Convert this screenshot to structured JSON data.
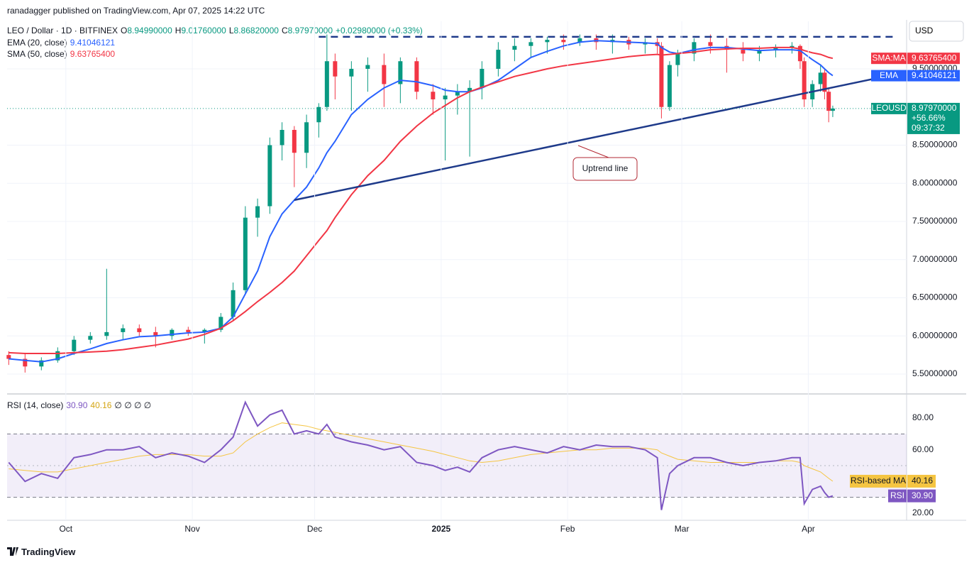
{
  "header": {
    "published": "ranadagger published on TradingView.com, Apr 07, 2025 14:22 UTC",
    "symbol_line": "LEO / Dollar · 1D · BITFINEX",
    "ohlc": [
      {
        "key": "O",
        "value": "8.94990000"
      },
      {
        "key": "H",
        "value": "9.01760000"
      },
      {
        "key": "L",
        "value": "8.86820000"
      },
      {
        "key": "C",
        "value": "8.97970000"
      }
    ],
    "change": "+0.02980000 (+0.33%)",
    "currency": "USD"
  },
  "footer": {
    "brand": "TradingView"
  },
  "chart_data": [
    {
      "type": "candlestick",
      "up_color": "#089981",
      "down_color": "#f23645",
      "x": [
        -14,
        -10,
        -6,
        -2,
        2,
        6,
        10,
        14,
        18,
        22,
        26,
        30,
        34,
        38,
        41,
        44,
        47,
        50,
        53,
        56,
        59,
        62,
        64,
        66,
        70,
        74,
        78,
        82,
        86,
        90,
        93,
        96,
        99,
        102,
        106,
        110,
        114,
        118,
        122,
        126,
        130,
        134,
        138,
        142,
        145,
        146,
        148,
        150,
        154,
        158,
        162,
        166,
        170,
        174,
        178,
        180,
        181,
        183,
        185,
        186,
        187,
        188
      ],
      "open": [
        5.75,
        5.7,
        5.6,
        5.68,
        5.8,
        5.95,
        6.0,
        6.05,
        6.1,
        6.05,
        6.0,
        6.08,
        6.05,
        6.08,
        6.25,
        6.6,
        7.55,
        7.7,
        8.5,
        8.7,
        8.4,
        8.8,
        9.0,
        9.6,
        9.4,
        9.5,
        9.55,
        9.3,
        9.6,
        9.2,
        9.1,
        9.15,
        9.2,
        9.25,
        9.5,
        9.75,
        9.8,
        9.85,
        9.88,
        9.85,
        9.9,
        9.85,
        9.88,
        9.82,
        9.85,
        9.8,
        9.0,
        9.55,
        9.7,
        9.85,
        9.8,
        9.75,
        9.7,
        9.75,
        9.78,
        9.8,
        9.6,
        9.1,
        9.3,
        9.45,
        9.2,
        8.9499
      ],
      "high": [
        5.8,
        5.78,
        5.72,
        5.85,
        6.0,
        6.05,
        6.88,
        6.15,
        6.15,
        6.12,
        6.1,
        6.12,
        6.1,
        6.3,
        6.7,
        7.7,
        7.8,
        8.6,
        8.8,
        8.75,
        8.9,
        9.05,
        9.95,
        9.7,
        9.6,
        9.65,
        9.7,
        9.65,
        9.65,
        9.3,
        9.25,
        9.3,
        9.35,
        9.6,
        9.85,
        9.9,
        9.9,
        9.92,
        9.95,
        9.95,
        9.95,
        9.95,
        9.92,
        9.9,
        9.9,
        9.85,
        9.6,
        9.75,
        9.9,
        9.95,
        9.9,
        9.85,
        9.8,
        9.82,
        9.85,
        9.82,
        9.65,
        9.35,
        9.55,
        9.5,
        9.25,
        9.0176
      ],
      "low": [
        5.62,
        5.52,
        5.55,
        5.65,
        5.75,
        5.9,
        5.95,
        5.95,
        6.0,
        5.85,
        5.95,
        6.0,
        5.9,
        6.05,
        6.2,
        6.55,
        7.3,
        7.6,
        8.3,
        7.95,
        8.2,
        8.6,
        8.95,
        9.1,
        8.95,
        9.2,
        9.0,
        9.05,
        9.1,
        8.9,
        8.3,
        8.9,
        8.35,
        9.1,
        9.4,
        9.6,
        9.65,
        9.7,
        9.75,
        9.8,
        9.75,
        9.7,
        9.75,
        9.7,
        9.7,
        8.85,
        8.95,
        9.4,
        9.6,
        9.7,
        9.45,
        9.6,
        9.6,
        9.65,
        9.7,
        9.5,
        9.0,
        9.0,
        9.2,
        9.1,
        8.8,
        8.8682
      ],
      "close": [
        5.7,
        5.6,
        5.68,
        5.8,
        5.95,
        6.0,
        6.05,
        6.1,
        6.05,
        6.0,
        6.08,
        6.05,
        6.08,
        6.25,
        6.6,
        7.55,
        7.7,
        8.5,
        8.7,
        8.4,
        8.8,
        9.0,
        9.6,
        9.4,
        9.5,
        9.55,
        9.3,
        9.6,
        9.2,
        9.1,
        9.15,
        9.2,
        9.25,
        9.5,
        9.75,
        9.8,
        9.85,
        9.88,
        9.85,
        9.9,
        9.85,
        9.88,
        9.82,
        9.85,
        9.8,
        9.0,
        9.55,
        9.7,
        9.85,
        9.8,
        9.75,
        9.7,
        9.75,
        9.78,
        9.8,
        9.6,
        9.1,
        9.3,
        9.45,
        9.2,
        8.95,
        8.9797
      ],
      "close_label": "8.97970000",
      "ticker": "LEOUSD",
      "change_label": "+56.66%",
      "countdown": "09:37:32",
      "series": [
        {
          "name": "EMA (20, close)",
          "label_name": "EMA",
          "last_label": "9.41046121",
          "color": "#2962ff",
          "values": [
            5.7,
            5.68,
            5.66,
            5.7,
            5.77,
            5.83,
            5.9,
            5.95,
            5.99,
            6.0,
            6.02,
            6.04,
            6.05,
            6.1,
            6.25,
            6.55,
            6.85,
            7.3,
            7.6,
            7.78,
            7.95,
            8.2,
            8.4,
            8.55,
            8.9,
            9.1,
            9.25,
            9.35,
            9.33,
            9.28,
            9.22,
            9.2,
            9.2,
            9.25,
            9.35,
            9.5,
            9.65,
            9.73,
            9.8,
            9.85,
            9.87,
            9.86,
            9.85,
            9.84,
            9.83,
            9.78,
            9.72,
            9.7,
            9.75,
            9.78,
            9.78,
            9.76,
            9.74,
            9.75,
            9.75,
            9.74,
            9.7,
            9.62,
            9.55,
            9.5,
            9.45,
            9.41046121
          ]
        },
        {
          "name": "SMA (50, close)",
          "label_name": "SMA:MA",
          "last_label": "9.63765400",
          "color": "#f23645",
          "values": [
            5.78,
            5.77,
            5.77,
            5.77,
            5.78,
            5.79,
            5.8,
            5.82,
            5.85,
            5.88,
            5.92,
            5.96,
            6.02,
            6.1,
            6.2,
            6.32,
            6.45,
            6.57,
            6.7,
            6.85,
            7.05,
            7.25,
            7.38,
            7.55,
            7.85,
            8.1,
            8.3,
            8.55,
            8.75,
            8.92,
            9.02,
            9.12,
            9.2,
            9.26,
            9.33,
            9.4,
            9.45,
            9.5,
            9.54,
            9.57,
            9.6,
            9.63,
            9.66,
            9.68,
            9.69,
            9.68,
            9.69,
            9.7,
            9.72,
            9.75,
            9.76,
            9.77,
            9.77,
            9.78,
            9.78,
            9.76,
            9.74,
            9.71,
            9.69,
            9.67,
            9.65,
            9.637654
          ]
        }
      ],
      "drawings": [
        {
          "x": [
            62,
            203
          ],
          "y": [
            9.92,
            9.92
          ],
          "color": "#1e3a8a",
          "dashed": true
        },
        {
          "x": [
            56,
            202.6
          ],
          "y": [
            7.78,
            9.42
          ],
          "color": "#1e3a8a",
          "dashed": false
        }
      ],
      "annotation": "Uptrend line",
      "xlim": [
        -14.4,
        206.1
      ],
      "ylim": [
        5.24,
        10.123
      ],
      "xticks": [
        {
          "value": 0,
          "label": "Oct"
        },
        {
          "value": 31,
          "label": "Nov"
        },
        {
          "value": 61,
          "label": "Dec"
        },
        {
          "value": 92,
          "label": "2025"
        },
        {
          "value": 123,
          "label": "Feb"
        },
        {
          "value": 151,
          "label": "Mar"
        },
        {
          "value": 182,
          "label": "Apr"
        }
      ],
      "yticks": [
        {
          "value": 9.5,
          "label": "9.50000000"
        },
        {
          "value": 8.5,
          "label": "8.50000000"
        },
        {
          "value": 8,
          "label": "8.00000000"
        },
        {
          "value": 7.5,
          "label": "7.50000000"
        },
        {
          "value": 7,
          "label": "7.00000000"
        },
        {
          "value": 6.5,
          "label": "6.50000000"
        },
        {
          "value": 6,
          "label": "6.00000000"
        },
        {
          "value": 5.5,
          "label": "5.50000000"
        }
      ],
      "grid": true
    },
    {
      "type": "line",
      "title": "RSI (14, close)",
      "na_marks": "∅ ∅ ∅ ∅",
      "x": [
        -14,
        -10,
        -6,
        -2,
        2,
        6,
        10,
        14,
        18,
        22,
        26,
        30,
        34,
        38,
        41,
        44,
        47,
        50,
        53,
        56,
        59,
        62,
        64,
        66,
        70,
        74,
        78,
        82,
        86,
        90,
        93,
        96,
        99,
        102,
        106,
        110,
        114,
        118,
        122,
        126,
        130,
        134,
        138,
        142,
        145,
        146,
        148,
        150,
        154,
        158,
        162,
        166,
        170,
        174,
        178,
        180,
        181,
        183,
        185,
        186,
        187,
        188
      ],
      "series": [
        {
          "name": "RSI",
          "last_label": "30.90",
          "color": "#7e57c2",
          "values": [
            52,
            40,
            45,
            42,
            55,
            57,
            60,
            60,
            62,
            55,
            58,
            56,
            52,
            60,
            68,
            90,
            75,
            82,
            85,
            70,
            72,
            70,
            76,
            68,
            65,
            63,
            60,
            62,
            52,
            50,
            47,
            49,
            46,
            55,
            60,
            62,
            60,
            58,
            62,
            60,
            63,
            62,
            62,
            60,
            55,
            22,
            45,
            50,
            55,
            55,
            52,
            50,
            52,
            53,
            55,
            55,
            26,
            35,
            37,
            33,
            30,
            30.9
          ]
        },
        {
          "name": "RSI-based MA",
          "last_label": "40.16",
          "color": "#f5c542",
          "values": [
            48,
            47,
            46,
            46,
            48,
            50,
            52,
            54,
            56,
            57,
            57,
            57,
            56,
            56,
            58,
            65,
            70,
            74,
            77,
            76,
            75,
            73,
            72,
            71,
            69,
            67,
            65,
            63,
            61,
            59,
            57,
            55,
            53,
            52,
            53,
            55,
            57,
            58,
            59,
            60,
            60,
            61,
            61,
            61,
            60,
            58,
            56,
            54,
            53,
            52,
            52,
            52,
            52,
            53,
            53,
            52,
            50,
            48,
            46,
            44,
            42,
            40.16
          ]
        }
      ],
      "bands": [
        30,
        70
      ],
      "midline": 50,
      "xlim": [
        -14.4,
        206.1
      ],
      "ylim": [
        15.5,
        94.8
      ],
      "yticks": [
        {
          "value": 80,
          "label": "80.00"
        },
        {
          "value": 60,
          "label": "60.00"
        },
        {
          "value": 20,
          "label": "20.00"
        }
      ]
    }
  ]
}
